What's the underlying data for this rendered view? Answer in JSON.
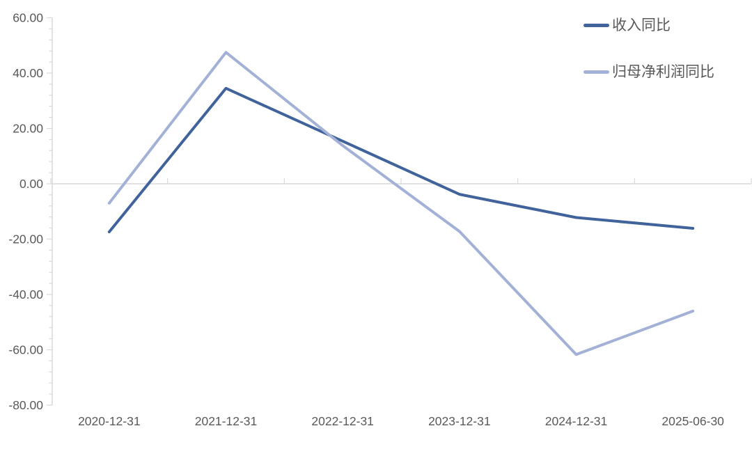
{
  "chart_data": {
    "type": "line",
    "title": "",
    "categories": [
      "2020-12-31",
      "2021-12-31",
      "2022-12-31",
      "2023-12-31",
      "2024-12-31",
      "2025-06-30"
    ],
    "series": [
      {
        "name": "收入同比",
        "color": "#41639C",
        "values": [
          -17.4,
          34.5,
          15.4,
          -3.8,
          -12.2,
          -16.1
        ]
      },
      {
        "name": "归母净利润同比",
        "color": "#A2B1D5",
        "values": [
          -7.0,
          47.5,
          13.8,
          -17.2,
          -61.7,
          -46.0
        ]
      }
    ],
    "xlabel": "",
    "ylabel": "",
    "y_axis": {
      "min": -80,
      "max": 60,
      "major_step": 20,
      "minor_step": 4,
      "tick_labels": [
        "60.00",
        "40.00",
        "20.00",
        "0.00",
        "-20.00",
        "-40.00",
        "-60.00",
        "-80.00"
      ]
    },
    "legend": {
      "position": "top-right",
      "entries": [
        "收入同比",
        "归母净利润同比"
      ]
    },
    "grid": {
      "horizontal_gridlines": false,
      "zero_baseline": true
    },
    "colors": {
      "axis_line": "#D9D9D9",
      "tick_text": "#595959",
      "background": "#FFFFFF"
    }
  }
}
